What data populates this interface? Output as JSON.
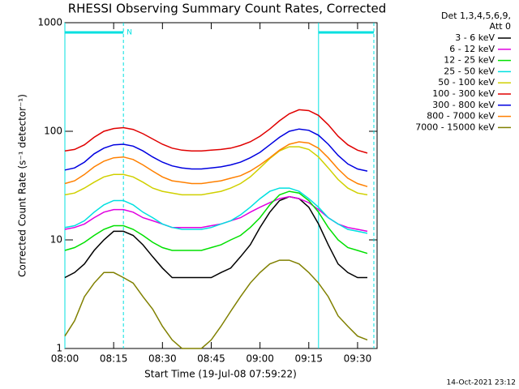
{
  "chart_data": {
    "type": "line",
    "title": "RHESSI Observing Summary Count Rates, Corrected",
    "ylabel": "Corrected Count Rate (s⁻¹ detector⁻¹)",
    "xlabel": "Start Time (19-Jul-08 07:59:22)",
    "legend_header": [
      "Det 1,3,4,5,6,9,",
      "Att 0"
    ],
    "footer": "14-Oct-2021 23:12",
    "log_y": true,
    "legend": "right",
    "ylim": [
      1,
      1000
    ],
    "yticks": [
      1,
      10,
      100,
      1000
    ],
    "xlim": [
      "08:00",
      "09:36"
    ],
    "xticks": [
      "08:00",
      "08:15",
      "08:30",
      "08:45",
      "09:00",
      "09:15",
      "09:30"
    ],
    "intervals": [
      {
        "start": "08:00",
        "end": "08:18",
        "label": "N",
        "color": "#00e0e0"
      },
      {
        "start": "09:18",
        "end": "09:35",
        "color": "#00e0e0"
      }
    ],
    "x": [
      "08:00",
      "08:03",
      "08:06",
      "08:09",
      "08:12",
      "08:15",
      "08:18",
      "08:21",
      "08:24",
      "08:27",
      "08:30",
      "08:33",
      "08:36",
      "08:39",
      "08:42",
      "08:45",
      "08:48",
      "08:51",
      "08:54",
      "08:57",
      "09:00",
      "09:03",
      "09:06",
      "09:09",
      "09:12",
      "09:15",
      "09:18",
      "09:21",
      "09:24",
      "09:27",
      "09:30",
      "09:33"
    ],
    "series": [
      {
        "name": "3 - 6 keV",
        "color": "#000000",
        "values": [
          4.5,
          5,
          6,
          8,
          10,
          12,
          12,
          11,
          9,
          7,
          5.5,
          4.5,
          4.5,
          4.5,
          4.5,
          4.5,
          5,
          5.5,
          7,
          9,
          13,
          18,
          23,
          25,
          24,
          20,
          14,
          9,
          6,
          5,
          4.5,
          4.5
        ]
      },
      {
        "name": "6 - 12 keV",
        "color": "#e000e0",
        "values": [
          12.5,
          13,
          14,
          16,
          18,
          19,
          19,
          18,
          16,
          15,
          14,
          13,
          13,
          13,
          13,
          13.5,
          14,
          15,
          16,
          18,
          20,
          22,
          24,
          25,
          24,
          22,
          19,
          16,
          14,
          13,
          12.5,
          12
        ]
      },
      {
        "name": "12 - 25 keV",
        "color": "#00e000",
        "values": [
          8,
          8.5,
          9.5,
          11,
          12.5,
          13.5,
          13.5,
          12.5,
          11,
          9.5,
          8.5,
          8,
          8,
          8,
          8,
          8.5,
          9,
          10,
          11,
          13,
          16,
          21,
          26,
          28,
          27,
          23,
          18,
          13,
          10,
          8.5,
          8,
          7.5
        ]
      },
      {
        "name": "25 - 50 keV",
        "color": "#00e0e0",
        "values": [
          13,
          13.5,
          15,
          18,
          21,
          23,
          23,
          21,
          18,
          16,
          14,
          13,
          12.5,
          12.5,
          12.5,
          13,
          14,
          15,
          17,
          20,
          24,
          28,
          30,
          30,
          28,
          24,
          20,
          16,
          14,
          12.5,
          12,
          11.5
        ]
      },
      {
        "name": "50 - 100 keV",
        "color": "#d0d000",
        "values": [
          26,
          27,
          30,
          34,
          38,
          40,
          40,
          38,
          34,
          30,
          28,
          27,
          26,
          26,
          26,
          27,
          28,
          30,
          33,
          38,
          46,
          56,
          66,
          72,
          72,
          68,
          58,
          46,
          36,
          30,
          27,
          26
        ]
      },
      {
        "name": "100 - 300 keV",
        "color": "#e00000",
        "values": [
          66,
          68,
          75,
          88,
          100,
          106,
          108,
          104,
          95,
          85,
          76,
          70,
          67,
          66,
          66,
          67,
          68,
          70,
          74,
          80,
          90,
          105,
          125,
          145,
          158,
          155,
          140,
          115,
          90,
          75,
          67,
          63
        ]
      },
      {
        "name": "300 - 800 keV",
        "color": "#0000e0",
        "values": [
          44,
          46,
          52,
          62,
          70,
          75,
          76,
          73,
          66,
          58,
          52,
          48,
          46,
          45,
          45,
          46,
          47,
          49,
          52,
          57,
          64,
          75,
          88,
          100,
          105,
          102,
          92,
          76,
          60,
          50,
          45,
          43
        ]
      },
      {
        "name": "800 - 7000 keV",
        "color": "#ff8000",
        "values": [
          33,
          35,
          40,
          47,
          53,
          57,
          58,
          55,
          49,
          43,
          38,
          35,
          34,
          33,
          33,
          34,
          35,
          37,
          39,
          43,
          49,
          57,
          67,
          76,
          80,
          78,
          70,
          57,
          45,
          37,
          33,
          31
        ]
      },
      {
        "name": "7000 - 15000 keV",
        "color": "#808000",
        "values": [
          1.3,
          1.8,
          3,
          4,
          5,
          5,
          4.5,
          4,
          3,
          2.3,
          1.6,
          1.2,
          1,
          1,
          1,
          1.2,
          1.6,
          2.2,
          3,
          4,
          5,
          6,
          6.5,
          6.5,
          6,
          5,
          4,
          3,
          2,
          1.6,
          1.3,
          1.2
        ]
      }
    ]
  }
}
